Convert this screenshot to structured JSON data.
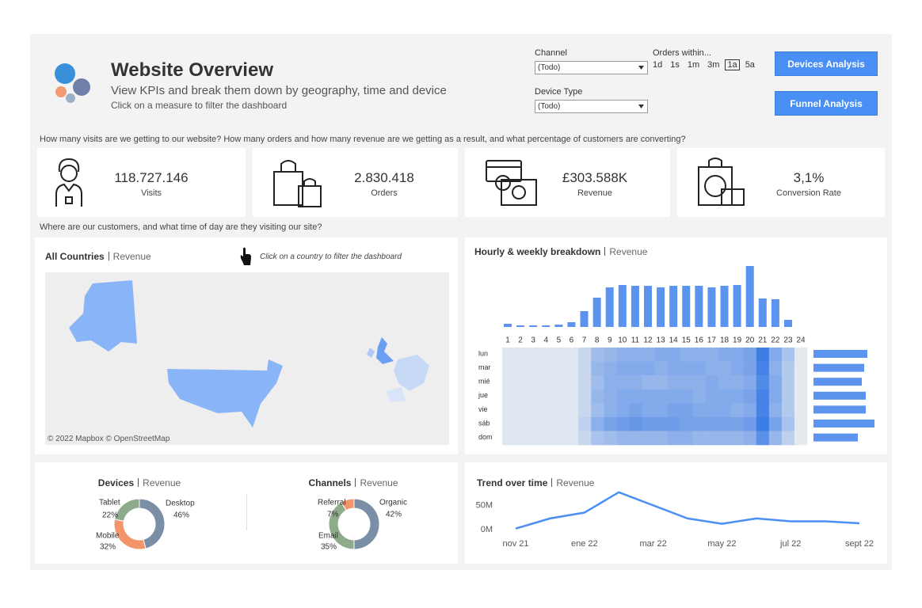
{
  "header": {
    "title": "Website Overview",
    "subtitle": "View KPIs and break them down by geography, time and device",
    "hint": "Click on a measure to filter the dashboard"
  },
  "filters": {
    "channel": {
      "label": "Channel",
      "value": "(Todo)"
    },
    "device_type": {
      "label": "Device Type",
      "value": "(Todo)"
    },
    "orders_within": {
      "label": "Orders within...",
      "options": [
        "1d",
        "1s",
        "1m",
        "3m",
        "1a",
        "5a"
      ],
      "selected": 4
    }
  },
  "buttons": [
    "Devices Analysis",
    "Funnel Analysis"
  ],
  "kpi_question": "How many visits are we getting to our website? How many orders and how many revenue are we getting as a result, and what percentage of customers are converting?",
  "kpis": [
    {
      "value": "118.727.146",
      "label": "Visits"
    },
    {
      "value": "2.830.418",
      "label": "Orders"
    },
    {
      "value": "£303.588K",
      "label": "Revenue"
    },
    {
      "value": "3,1%",
      "label": "Conversion Rate"
    }
  ],
  "geo_question": "Where are our customers, and what time of day are they visiting our site?",
  "map": {
    "title": "All Countries",
    "measure": "Revenue",
    "hint": "Click on a country to filter the dashboard",
    "attribution": "© 2022 Mapbox © OpenStreetMap"
  },
  "chart_data": [
    {
      "type": "bar",
      "title": "Hourly & weekly breakdown",
      "subtitle": "Revenue",
      "categories": [
        "1",
        "2",
        "3",
        "4",
        "5",
        "6",
        "7",
        "8",
        "9",
        "10",
        "11",
        "12",
        "13",
        "14",
        "15",
        "16",
        "17",
        "18",
        "19",
        "20",
        "21",
        "22",
        "23",
        "24"
      ],
      "values": [
        4,
        2,
        2,
        2,
        3,
        6,
        20,
        37,
        50,
        53,
        52,
        52,
        50,
        52,
        52,
        52,
        50,
        52,
        53,
        77,
        36,
        35,
        9,
        0
      ],
      "color": "#5b93ef"
    },
    {
      "type": "barh",
      "categories": [
        "lun",
        "mar",
        "mié",
        "jue",
        "vie",
        "sáb",
        "dom"
      ],
      "values": [
        68,
        64,
        61,
        66,
        66,
        77,
        56
      ],
      "color": "#5b93ef"
    },
    {
      "type": "heatmap",
      "colors": [
        "#f0f0f0",
        "#3d7de6"
      ],
      "values": [
        [
          8,
          8,
          8,
          8,
          8,
          8,
          20,
          40,
          45,
          50,
          50,
          50,
          55,
          55,
          50,
          50,
          50,
          55,
          55,
          60,
          90,
          55,
          35,
          5
        ],
        [
          8,
          8,
          8,
          8,
          8,
          8,
          20,
          45,
          50,
          55,
          55,
          55,
          50,
          55,
          55,
          55,
          50,
          50,
          55,
          60,
          85,
          50,
          30,
          5
        ],
        [
          8,
          8,
          8,
          8,
          8,
          8,
          20,
          40,
          50,
          50,
          50,
          45,
          45,
          50,
          50,
          50,
          55,
          50,
          50,
          55,
          80,
          55,
          30,
          5
        ],
        [
          8,
          8,
          8,
          8,
          8,
          8,
          20,
          45,
          50,
          55,
          55,
          55,
          55,
          55,
          55,
          50,
          55,
          55,
          55,
          60,
          85,
          55,
          30,
          5
        ],
        [
          8,
          8,
          8,
          8,
          8,
          8,
          20,
          40,
          50,
          55,
          60,
          55,
          55,
          60,
          60,
          55,
          55,
          55,
          50,
          55,
          85,
          50,
          30,
          5
        ],
        [
          8,
          8,
          8,
          8,
          8,
          8,
          25,
          50,
          60,
          65,
          70,
          65,
          65,
          65,
          60,
          60,
          60,
          60,
          60,
          65,
          90,
          60,
          35,
          5
        ],
        [
          8,
          8,
          8,
          8,
          8,
          8,
          20,
          35,
          40,
          45,
          45,
          45,
          45,
          50,
          50,
          45,
          45,
          45,
          45,
          50,
          75,
          45,
          25,
          5
        ]
      ]
    },
    {
      "type": "donut",
      "title": "Devices",
      "subtitle": "Revenue",
      "categories": [
        "Desktop",
        "Mobile",
        "Tablet"
      ],
      "values": [
        46,
        32,
        22
      ],
      "value_labels": [
        "46%",
        "32%",
        "22%"
      ],
      "colors": [
        "#7a8ea6",
        "#f2956b",
        "#8eab8b"
      ]
    },
    {
      "type": "donut",
      "title": "Channels",
      "subtitle": "Revenue",
      "categories": [
        "Organic",
        "Email",
        "Referral"
      ],
      "values": [
        42,
        35,
        7
      ],
      "value_labels": [
        "42%",
        "35%",
        "7%"
      ],
      "colors": [
        "#7a8ea6",
        "#8eab8b",
        "#f2956b"
      ]
    },
    {
      "type": "line",
      "title": "Trend over time",
      "subtitle": "Revenue",
      "categories": [
        "nov 21",
        null,
        "ene 22",
        null,
        "mar 22",
        null,
        "may 22",
        null,
        "jul 22",
        null,
        "sept 22"
      ],
      "values": [
        2000000,
        23000000,
        35000000,
        77000000,
        50000000,
        23000000,
        12000000,
        23000000,
        17000000,
        17000000,
        13000000
      ],
      "ylim": [
        -5000000,
        80000000
      ],
      "yticks": [
        {
          "value": 0,
          "label": "0M"
        },
        {
          "value": 50000000,
          "label": "50M"
        }
      ],
      "color": "#4a8ff5"
    }
  ]
}
